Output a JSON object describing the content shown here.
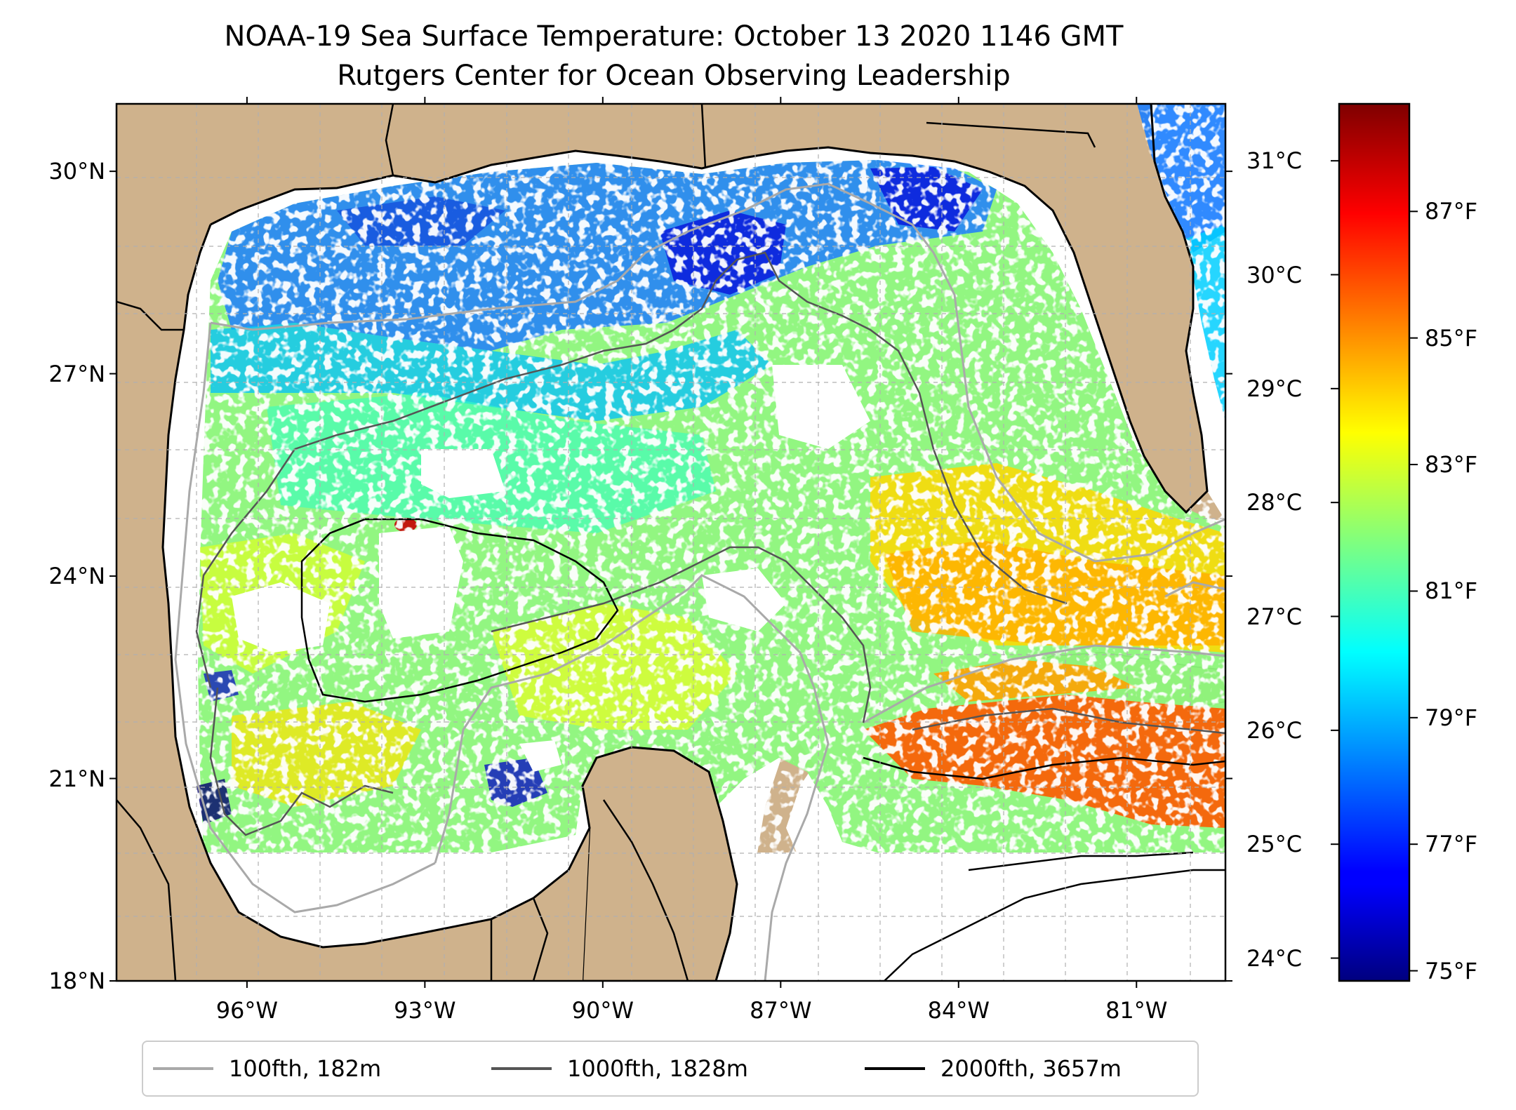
{
  "title": {
    "line1": "NOAA-19 Sea Surface Temperature: October 13 2020 1146 GMT",
    "line2": "Rutgers Center for Ocean Observing Leadership"
  },
  "map": {
    "lon_range": [
      -98.2,
      -79.5
    ],
    "lat_range": [
      18.0,
      31.0
    ],
    "lat_ticks": [
      {
        "value": 30,
        "label": "30°N"
      },
      {
        "value": 27,
        "label": "27°N"
      },
      {
        "value": 24,
        "label": "24°N"
      },
      {
        "value": 21,
        "label": "21°N"
      },
      {
        "value": 18,
        "label": "18°N"
      }
    ],
    "lon_ticks": [
      {
        "value": -96,
        "label": "96°W"
      },
      {
        "value": -93,
        "label": "93°W"
      },
      {
        "value": -90,
        "label": "90°W"
      },
      {
        "value": -87,
        "label": "87°W"
      },
      {
        "value": -84,
        "label": "84°W"
      },
      {
        "value": -81,
        "label": "81°W"
      }
    ],
    "gridlines": true,
    "land_color": "#cfb28c",
    "no_data_color": "#ffffff"
  },
  "colorbar": {
    "colormap": "jet",
    "celsius_range": [
      23.8,
      31.5
    ],
    "celsius_ticks": [
      {
        "value": 31,
        "label": "31°C"
      },
      {
        "value": 30,
        "label": "30°C"
      },
      {
        "value": 29,
        "label": "29°C"
      },
      {
        "value": 28,
        "label": "28°C"
      },
      {
        "value": 27,
        "label": "27°C"
      },
      {
        "value": 26,
        "label": "26°C"
      },
      {
        "value": 25,
        "label": "25°C"
      },
      {
        "value": 24,
        "label": "24°C"
      }
    ],
    "fahrenheit_ticks": [
      {
        "value": 87,
        "label": "87°F"
      },
      {
        "value": 85,
        "label": "85°F"
      },
      {
        "value": 83,
        "label": "83°F"
      },
      {
        "value": 81,
        "label": "81°F"
      },
      {
        "value": 79,
        "label": "79°F"
      },
      {
        "value": 77,
        "label": "77°F"
      },
      {
        "value": 75,
        "label": "75°F"
      }
    ]
  },
  "legend": {
    "items": [
      {
        "label": "100fth, 182m",
        "color": "#a9a9a9"
      },
      {
        "label": "1000fth, 1828m",
        "color": "#555555"
      },
      {
        "label": "2000fth, 3657m",
        "color": "#000000"
      }
    ]
  }
}
